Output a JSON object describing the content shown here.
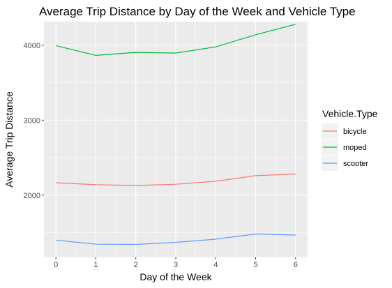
{
  "chart_data": {
    "type": "line",
    "title": "Average Trip Distance by Day of the Week and Vehicle Type",
    "xlabel": "Day of the Week",
    "ylabel": "Average Trip Distance",
    "x": [
      0,
      1,
      2,
      3,
      4,
      5,
      6
    ],
    "xlim": [
      -0.3,
      6.3
    ],
    "ylim": [
      1170,
      4315
    ],
    "yticks": [
      2000,
      3000,
      4000
    ],
    "grid": true,
    "legend": {
      "title": "Vehicle.Type",
      "placement": "right"
    },
    "series": [
      {
        "name": "bicycle",
        "color": "#F8766D",
        "values": [
          2165,
          2140,
          2128,
          2145,
          2185,
          2260,
          2282
        ]
      },
      {
        "name": "moped",
        "color": "#00BA38",
        "values": [
          3995,
          3865,
          3905,
          3895,
          3978,
          4140,
          4280
        ]
      },
      {
        "name": "scooter",
        "color": "#619CFF",
        "values": [
          1400,
          1345,
          1342,
          1370,
          1412,
          1482,
          1467
        ]
      }
    ]
  }
}
